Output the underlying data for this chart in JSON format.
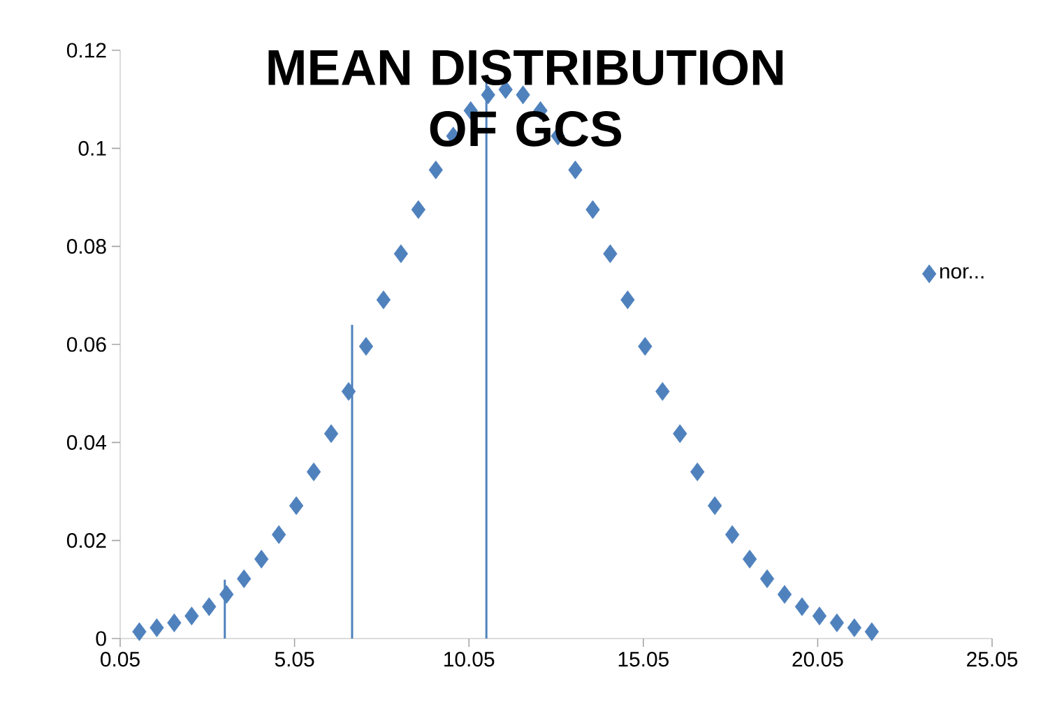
{
  "chart_data": {
    "type": "scatter",
    "title": "MEAN DISTRIBUTION OF GCS",
    "legend": "right",
    "grid": false,
    "xlim": [
      0.05,
      25.05
    ],
    "xticks": [
      0.05,
      5.05,
      10.05,
      15.05,
      20.05,
      25.05
    ],
    "ylim": [
      0,
      0.12
    ],
    "yticks": [
      0,
      0.02,
      0.04,
      0.06,
      0.08,
      0.1,
      0.12
    ],
    "series": [
      {
        "name": "nor...",
        "color": "#4f81bd",
        "marker": "diamond",
        "x": [
          0.6,
          1.1,
          1.6,
          2.1,
          2.6,
          3.1,
          3.6,
          4.1,
          4.6,
          5.1,
          5.6,
          6.1,
          6.6,
          7.1,
          7.6,
          8.1,
          8.6,
          9.1,
          9.6,
          10.1,
          10.6,
          11.1,
          11.6,
          12.1,
          12.6,
          13.1,
          13.6,
          14.1,
          14.6,
          15.1,
          15.6,
          16.1,
          16.6,
          17.1,
          17.6,
          18.1,
          18.6,
          19.1,
          19.6,
          20.1,
          20.6,
          21.1,
          21.6
        ],
        "values": [
          0.0014,
          0.0022,
          0.0032,
          0.0046,
          0.0065,
          0.009,
          0.0122,
          0.0162,
          0.0212,
          0.0271,
          0.034,
          0.0418,
          0.0504,
          0.0596,
          0.0691,
          0.0785,
          0.0875,
          0.0956,
          0.1025,
          0.1077,
          0.1109,
          0.112,
          0.1109,
          0.1077,
          0.1025,
          0.0956,
          0.0875,
          0.0785,
          0.0691,
          0.0596,
          0.0504,
          0.0418,
          0.034,
          0.0271,
          0.0212,
          0.0162,
          0.0122,
          0.009,
          0.0065,
          0.0046,
          0.0032,
          0.0022,
          0.0014
        ]
      },
      {
        "type": "line",
        "color": "#4f81bd",
        "x": [
          3.05,
          3.05
        ],
        "values": [
          0,
          0.012
        ]
      },
      {
        "type": "line",
        "color": "#4f81bd",
        "x": [
          6.7,
          6.7
        ],
        "values": [
          0,
          0.064
        ]
      },
      {
        "type": "line",
        "color": "#4f81bd",
        "x": [
          10.55,
          10.55
        ],
        "values": [
          0,
          0.114
        ]
      }
    ]
  }
}
